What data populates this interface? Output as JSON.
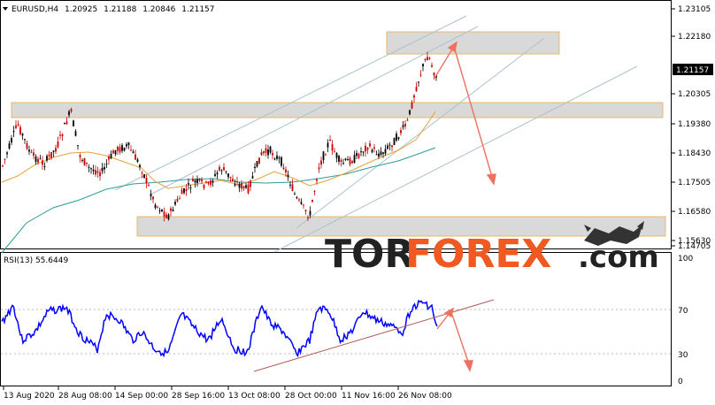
{
  "header": {
    "symbol": "EURUSD,H4",
    "open": "1.20925",
    "high": "1.21188",
    "low": "1.20846",
    "close": "1.21157",
    "dropdown_icon": "triangle-down-icon"
  },
  "watermark": {
    "part1": "TOR",
    "part2": "FOREX",
    "part3": ".com",
    "logo_icon": "bull-bear-icon",
    "colors": {
      "tor": "#222222",
      "forex": "#f05a22",
      "com": "#222222"
    }
  },
  "price_axis": {
    "labels": [
      "1.23105",
      "1.22180",
      "1.21157",
      "1.20305",
      "1.19380",
      "1.18430",
      "1.17505",
      "1.16580",
      "1.15630",
      "1.14705"
    ],
    "current_price": "1.21157"
  },
  "rsi": {
    "label": "RSI(13) 55.6449",
    "levels": [
      "100",
      "70",
      "30",
      "0"
    ],
    "color": "#0000ff"
  },
  "time_axis": {
    "labels": [
      "13 Aug 2020",
      "28 Aug 08:00",
      "14 Sep 00:00",
      "28 Sep 16:00",
      "13 Oct 08:00",
      "28 Oct 00:00",
      "11 Nov 16:00",
      "26 Nov 08:00"
    ]
  },
  "colors": {
    "bull": "#000000",
    "bear": "#cc0000",
    "ma_fast": "#e6a23c",
    "ma_slow": "#2e9b9b",
    "zone_fill": "#d9d9d9",
    "zone_border": "#e8b96a",
    "trend_line": "#a9c3cf",
    "forecast_arrow": "#f07060",
    "rsi_trend": "#b05a5a"
  }
}
